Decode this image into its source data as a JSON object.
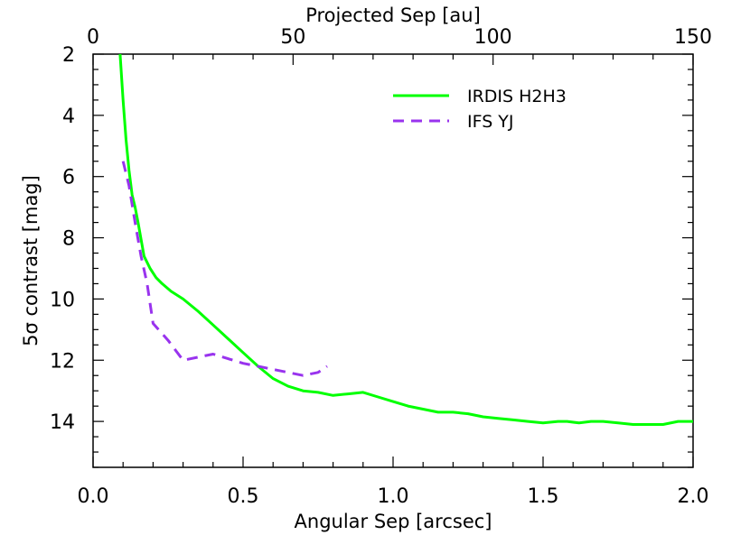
{
  "chart_data": {
    "type": "line",
    "xlabel": "Angular Sep [arcsec]",
    "x2label": "Projected Sep [au]",
    "ylabel": "5σ contrast [mag]",
    "xlim": [
      0.0,
      2.0
    ],
    "x2lim": [
      0,
      150
    ],
    "ylim": [
      15.5,
      2
    ],
    "y_inverted": true,
    "x_tick_labels": [
      "0.0",
      "0.5",
      "1.0",
      "1.5",
      "2.0"
    ],
    "x2_tick_labels": [
      "0",
      "50",
      "100",
      "150"
    ],
    "y_tick_labels": [
      "2",
      "4",
      "6",
      "8",
      "10",
      "12",
      "14"
    ],
    "grid": false,
    "legend_position": "top-right",
    "series": [
      {
        "name": "IRDIS H2H3",
        "color": "#00ff00",
        "style": "solid",
        "x": [
          0.09,
          0.1,
          0.11,
          0.12,
          0.13,
          0.14,
          0.15,
          0.17,
          0.19,
          0.21,
          0.23,
          0.26,
          0.3,
          0.35,
          0.4,
          0.45,
          0.5,
          0.55,
          0.6,
          0.65,
          0.7,
          0.75,
          0.8,
          0.85,
          0.9,
          0.95,
          1.0,
          1.05,
          1.1,
          1.15,
          1.2,
          1.25,
          1.3,
          1.35,
          1.4,
          1.45,
          1.5,
          1.55,
          1.58,
          1.62,
          1.66,
          1.7,
          1.75,
          1.8,
          1.85,
          1.9,
          1.95,
          2.0
        ],
        "y": [
          2.0,
          3.5,
          4.8,
          5.8,
          6.6,
          7.0,
          7.5,
          8.6,
          9.0,
          9.3,
          9.5,
          9.75,
          10.0,
          10.4,
          10.85,
          11.3,
          11.75,
          12.2,
          12.6,
          12.85,
          13.0,
          13.05,
          13.15,
          13.1,
          13.05,
          13.2,
          13.35,
          13.5,
          13.6,
          13.7,
          13.7,
          13.75,
          13.85,
          13.9,
          13.95,
          14.0,
          14.05,
          14.0,
          14.0,
          14.05,
          14.0,
          14.0,
          14.05,
          14.1,
          14.1,
          14.1,
          14.0,
          14.0
        ]
      },
      {
        "name": "IFS YJ",
        "color": "#9933ee",
        "style": "dashed",
        "x": [
          0.1,
          0.12,
          0.14,
          0.16,
          0.18,
          0.2,
          0.25,
          0.3,
          0.35,
          0.4,
          0.45,
          0.5,
          0.55,
          0.6,
          0.65,
          0.7,
          0.75,
          0.78
        ],
        "y": [
          5.5,
          6.3,
          7.5,
          8.6,
          9.5,
          10.8,
          11.35,
          12.0,
          11.9,
          11.8,
          11.95,
          12.1,
          12.2,
          12.3,
          12.4,
          12.5,
          12.4,
          12.2
        ]
      }
    ]
  }
}
